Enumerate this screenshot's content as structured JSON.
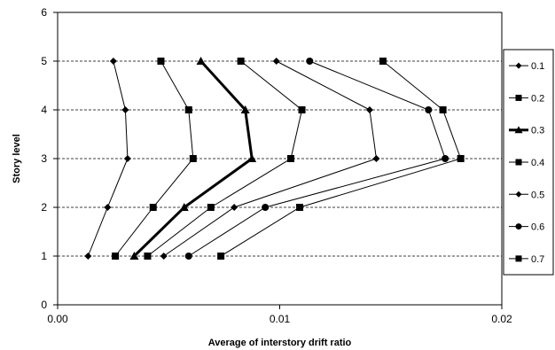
{
  "chart_data": {
    "type": "line",
    "title": "",
    "xlabel": "Average of interstory drift ratio",
    "ylabel": "Story level",
    "xlim": [
      0,
      0.02
    ],
    "ylim": [
      0,
      6
    ],
    "xticks": [
      0,
      0.01,
      0.02
    ],
    "xtick_labels": [
      "0.00",
      "0.01",
      "0.02"
    ],
    "yticks": [
      0,
      1,
      2,
      3,
      4,
      5,
      6
    ],
    "ytick_labels": [
      "0",
      "1",
      "2",
      "3",
      "4",
      "5",
      "6"
    ],
    "grid": "horizontal dashed",
    "legend_position": "right",
    "series": [
      {
        "name": "0.1",
        "marker": "diamond",
        "bold": false,
        "x": [
          0.00137,
          0.00225,
          0.00315,
          0.00305,
          0.00251
        ],
        "y": [
          1,
          2,
          3,
          4,
          5
        ]
      },
      {
        "name": "0.2",
        "marker": "square",
        "bold": false,
        "x": [
          0.0026,
          0.0043,
          0.0061,
          0.0059,
          0.00465
        ],
        "y": [
          1,
          2,
          3,
          4,
          5
        ]
      },
      {
        "name": "0.3",
        "marker": "triangle",
        "bold": true,
        "x": [
          0.00345,
          0.0057,
          0.00875,
          0.00845,
          0.00645
        ],
        "y": [
          1,
          2,
          3,
          4,
          5
        ]
      },
      {
        "name": "0.4",
        "marker": "square",
        "bold": false,
        "x": [
          0.00405,
          0.0069,
          0.0105,
          0.011,
          0.00825
        ],
        "y": [
          1,
          2,
          3,
          4,
          5
        ]
      },
      {
        "name": "0.5",
        "marker": "diamond",
        "bold": false,
        "x": [
          0.00478,
          0.00795,
          0.01435,
          0.01405,
          0.00985
        ],
        "y": [
          1,
          2,
          3,
          4,
          5
        ]
      },
      {
        "name": "0.6",
        "marker": "circle",
        "bold": false,
        "x": [
          0.0059,
          0.00935,
          0.01745,
          0.0167,
          0.01135
        ],
        "y": [
          1,
          2,
          3,
          4,
          5
        ]
      },
      {
        "name": "0.7",
        "marker": "square",
        "bold": false,
        "x": [
          0.00735,
          0.0109,
          0.01815,
          0.01735,
          0.01465
        ],
        "y": [
          1,
          2,
          3,
          4,
          5
        ]
      }
    ]
  }
}
